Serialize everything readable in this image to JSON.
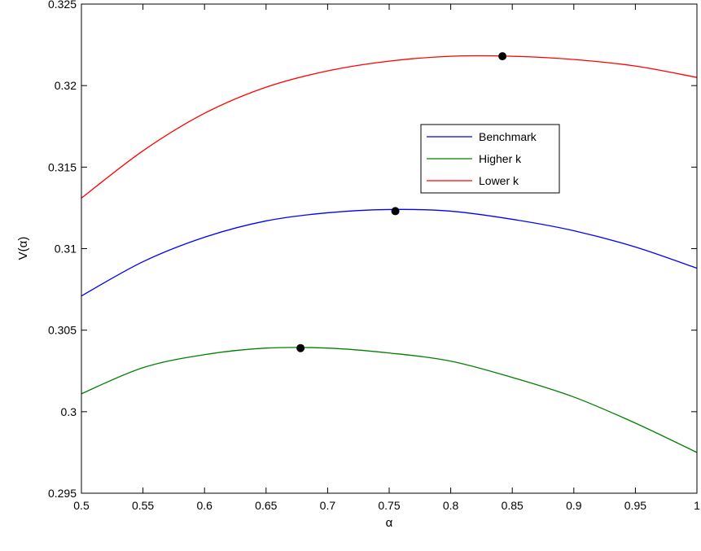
{
  "chart_data": {
    "type": "line",
    "title": "",
    "xlabel": "α",
    "ylabel": "V(α)",
    "xlim": [
      0.5,
      1.0
    ],
    "ylim": [
      0.295,
      0.325
    ],
    "x_ticks": [
      0.5,
      0.55,
      0.6,
      0.65,
      0.7,
      0.75,
      0.8,
      0.85,
      0.9,
      0.95,
      1.0
    ],
    "x_tick_labels": [
      "0.5",
      "0.55",
      "0.6",
      "0.65",
      "0.7",
      "0.75",
      "0.8",
      "0.85",
      "0.9",
      "0.95",
      "1"
    ],
    "y_ticks": [
      0.295,
      0.3,
      0.305,
      0.31,
      0.315,
      0.32,
      0.325
    ],
    "y_tick_labels": [
      "0.295",
      "0.3",
      "0.305",
      "0.31",
      "0.315",
      "0.32",
      "0.325"
    ],
    "grid": false,
    "legend_position": "upper-right-inset",
    "x": [
      0.5,
      0.55,
      0.6,
      0.65,
      0.7,
      0.75,
      0.8,
      0.85,
      0.9,
      0.95,
      1.0
    ],
    "series": [
      {
        "name": "Benchmark",
        "color": "#0000ff",
        "values": [
          0.3071,
          0.3092,
          0.3107,
          0.3117,
          0.3122,
          0.3124,
          0.3123,
          0.3118,
          0.3111,
          0.3101,
          0.3088
        ],
        "max_point": {
          "x": 0.755,
          "y": 0.3123
        }
      },
      {
        "name": "Higher k",
        "color": "#008000",
        "values": [
          0.3011,
          0.3027,
          0.3035,
          0.3039,
          0.3039,
          0.3036,
          0.3031,
          0.3021,
          0.3009,
          0.2993,
          0.2975
        ],
        "max_point": {
          "x": 0.678,
          "y": 0.3039
        }
      },
      {
        "name": "Lower k",
        "color": "#ff0000",
        "values": [
          0.3131,
          0.316,
          0.3183,
          0.3199,
          0.3209,
          0.3215,
          0.3218,
          0.3218,
          0.3216,
          0.3212,
          0.3205
        ],
        "max_point": {
          "x": 0.842,
          "y": 0.3218
        }
      }
    ]
  }
}
